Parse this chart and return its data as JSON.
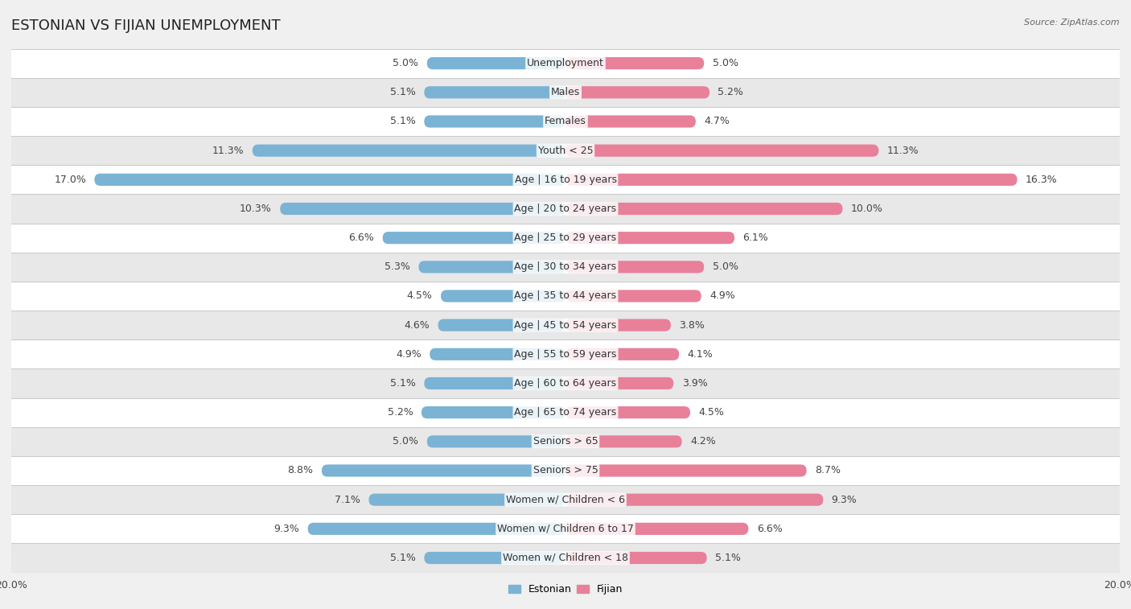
{
  "title": "ESTONIAN VS FIJIAN UNEMPLOYMENT",
  "source": "Source: ZipAtlas.com",
  "categories": [
    "Unemployment",
    "Males",
    "Females",
    "Youth < 25",
    "Age | 16 to 19 years",
    "Age | 20 to 24 years",
    "Age | 25 to 29 years",
    "Age | 30 to 34 years",
    "Age | 35 to 44 years",
    "Age | 45 to 54 years",
    "Age | 55 to 59 years",
    "Age | 60 to 64 years",
    "Age | 65 to 74 years",
    "Seniors > 65",
    "Seniors > 75",
    "Women w/ Children < 6",
    "Women w/ Children 6 to 17",
    "Women w/ Children < 18"
  ],
  "estonian": [
    5.0,
    5.1,
    5.1,
    11.3,
    17.0,
    10.3,
    6.6,
    5.3,
    4.5,
    4.6,
    4.9,
    5.1,
    5.2,
    5.0,
    8.8,
    7.1,
    9.3,
    5.1
  ],
  "fijian": [
    5.0,
    5.2,
    4.7,
    11.3,
    16.3,
    10.0,
    6.1,
    5.0,
    4.9,
    3.8,
    4.1,
    3.9,
    4.5,
    4.2,
    8.7,
    9.3,
    6.6,
    5.1
  ],
  "estonian_color": "#7ab3d4",
  "fijian_color": "#e8809a",
  "max_val": 20.0,
  "bg_color": "#f0f0f0",
  "row_color_odd": "#ffffff",
  "row_color_even": "#e8e8e8",
  "bar_height": 0.42,
  "title_fontsize": 13,
  "label_fontsize": 9,
  "value_fontsize": 9,
  "tick_fontsize": 9
}
